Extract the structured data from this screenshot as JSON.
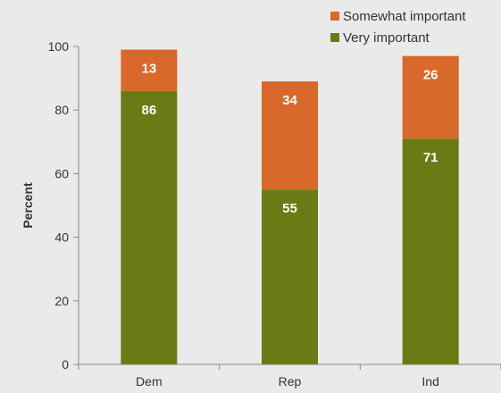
{
  "chart_data": {
    "type": "bar",
    "stacked": true,
    "categories": [
      "Dem",
      "Rep",
      "Ind"
    ],
    "series": [
      {
        "name": "Very important",
        "values": [
          86,
          55,
          71
        ],
        "color": "#6b7a14"
      },
      {
        "name": "Somewhat important",
        "values": [
          13,
          34,
          26
        ],
        "color": "#d9692a"
      }
    ],
    "xlabel": "",
    "ylabel": "Percent",
    "ylim": [
      0,
      100
    ],
    "yticks": [
      0,
      20,
      40,
      60,
      80,
      100
    ],
    "grid": false,
    "legend_position": "top-right",
    "legend_order": [
      "Somewhat important",
      "Very important"
    ],
    "background": "#eaeaea"
  }
}
